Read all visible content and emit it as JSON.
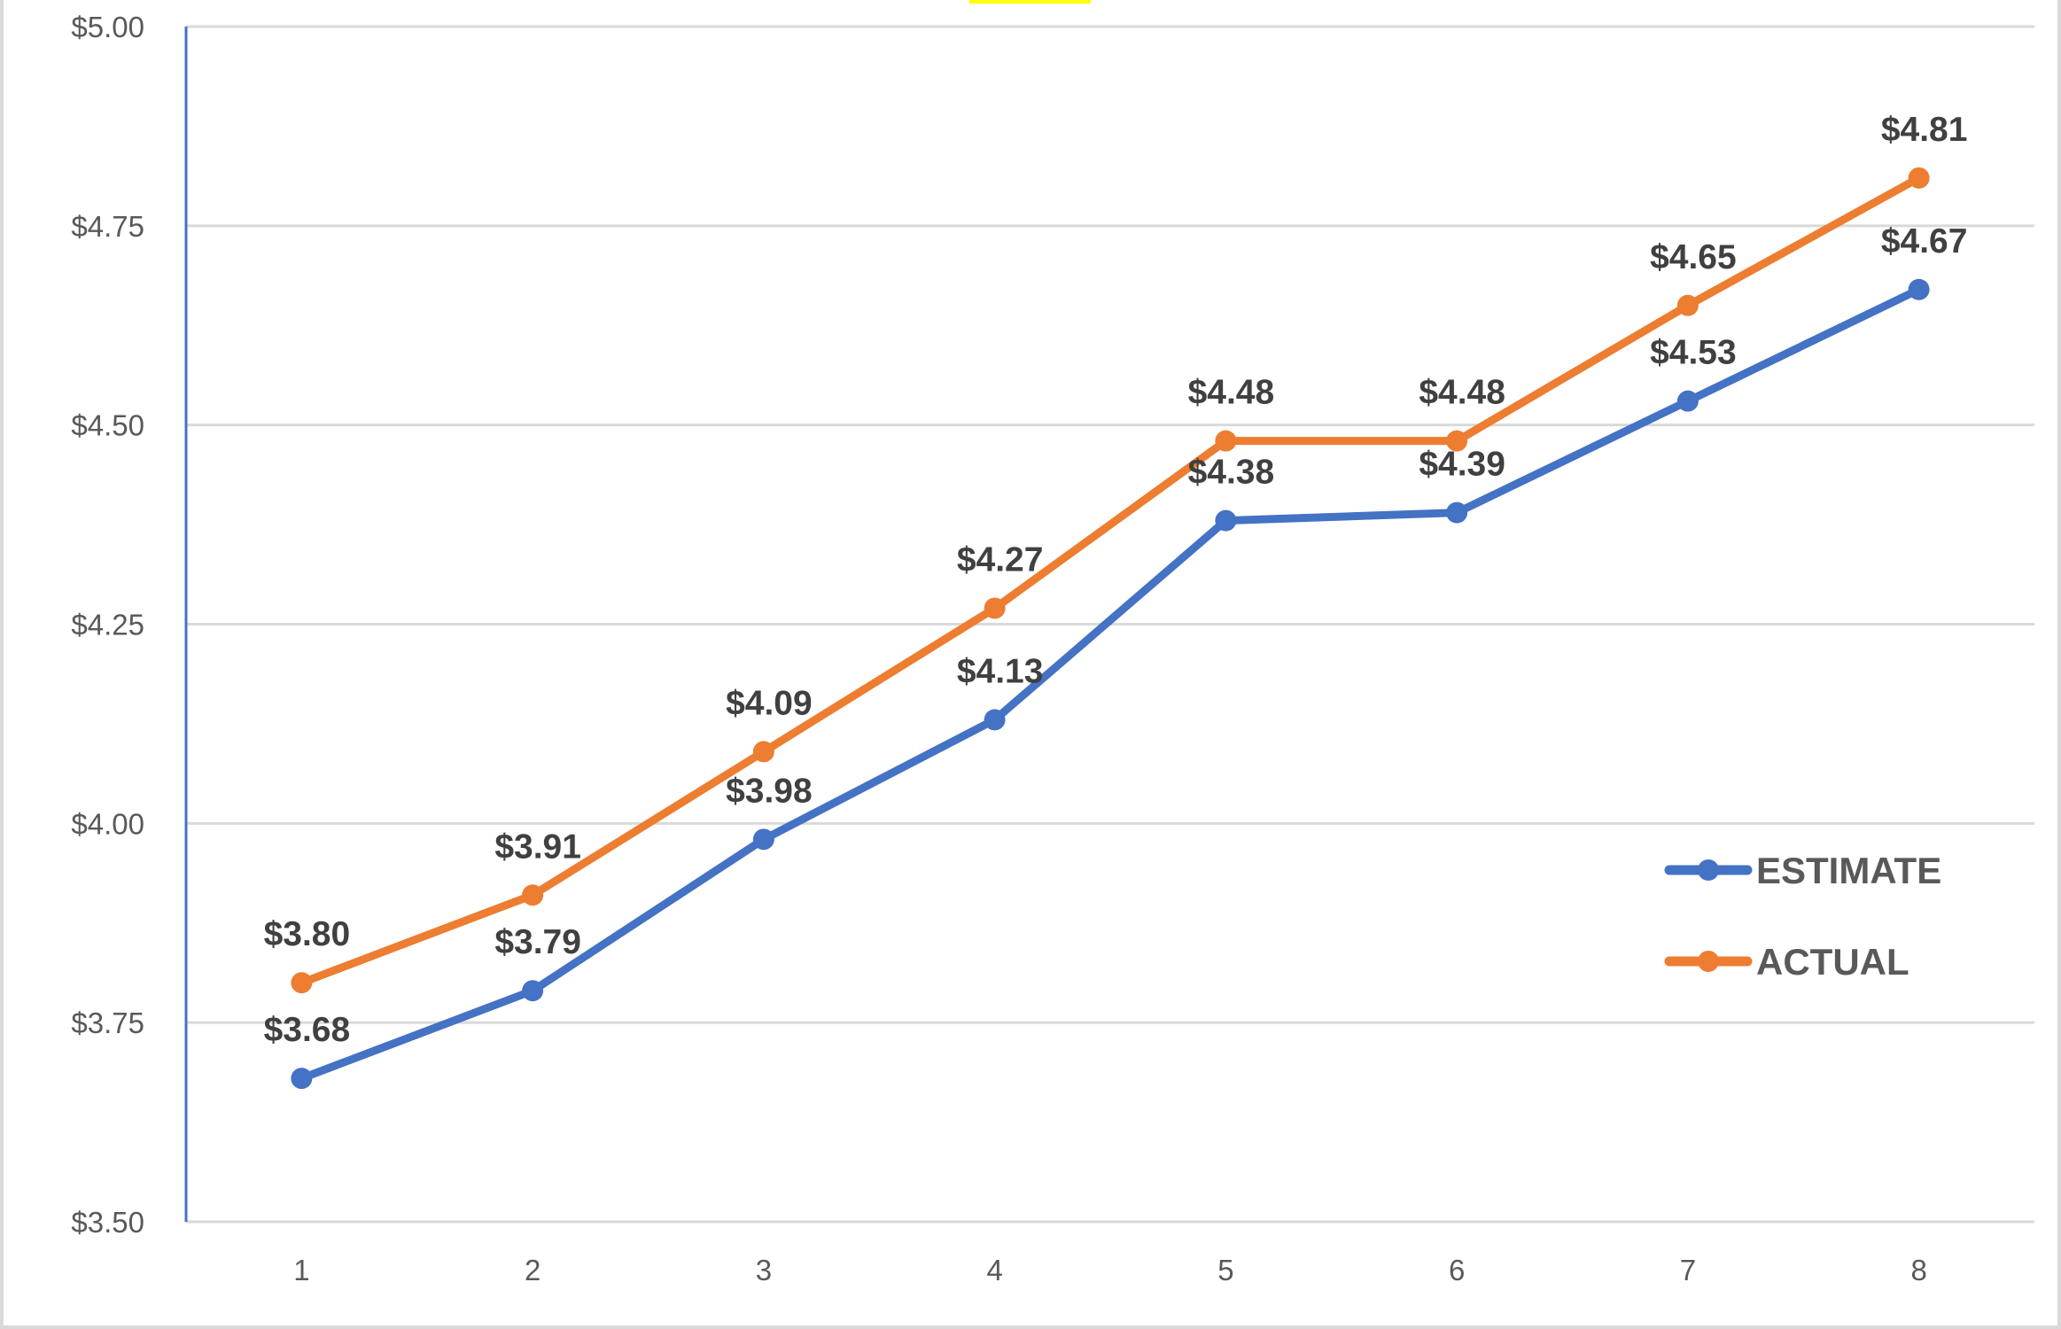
{
  "chart_data": {
    "type": "line",
    "title": "",
    "xlabel": "",
    "ylabel": "",
    "categories": [
      "1",
      "2",
      "3",
      "4",
      "5",
      "6",
      "7",
      "8"
    ],
    "series": [
      {
        "name": "ESTIMATE",
        "color": "#4472c4",
        "values": [
          3.68,
          3.79,
          3.98,
          4.13,
          4.38,
          4.39,
          4.53,
          4.67
        ],
        "labels": [
          "$3.68",
          "$3.79",
          "$3.98",
          "$4.13",
          "$4.38",
          "$4.39",
          "$4.53",
          "$4.67"
        ]
      },
      {
        "name": "ACTUAL",
        "color": "#ed7d31",
        "values": [
          3.8,
          3.91,
          4.09,
          4.27,
          4.48,
          4.48,
          4.65,
          4.81
        ],
        "labels": [
          "$3.80",
          "$3.91",
          "$4.09",
          "$4.27",
          "$4.48",
          "$4.48",
          "$4.65",
          "$4.81"
        ]
      }
    ],
    "ylim": [
      3.5,
      5.0
    ],
    "yticks": [
      3.5,
      3.75,
      4.0,
      4.25,
      4.5,
      4.75,
      5.0
    ],
    "ytick_labels": [
      "$3.50",
      "$3.75",
      "$4.00",
      "$4.25",
      "$4.50",
      "$4.75",
      "$5.00"
    ],
    "grid": true,
    "legend_position": "right-inside",
    "data_labels": true
  },
  "colors": {
    "gridline": "#d9d9d9",
    "y_axis_line": "#4472c4",
    "tick_text": "#595959",
    "data_label_text": "#404040",
    "highlight": "#ffff00"
  }
}
